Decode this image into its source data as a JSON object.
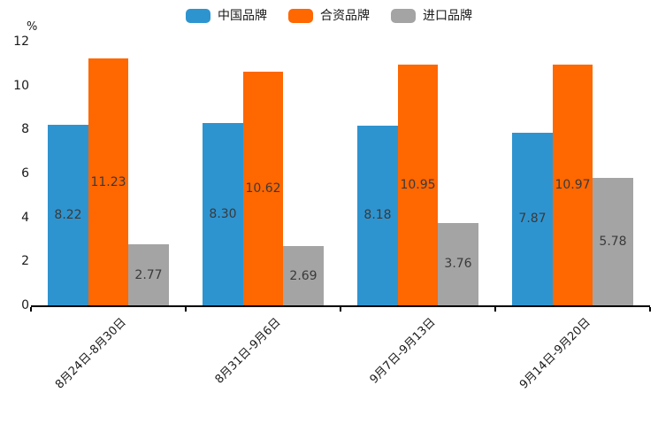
{
  "chart_data": {
    "type": "bar",
    "title": "",
    "unit_label": "%",
    "categories": [
      "8月24日-8月30日",
      "8月31日-9月6日",
      "9月7日-9月13日",
      "9月14日-9月20日"
    ],
    "series": [
      {
        "name": "中国品牌",
        "color": "#2E94D0",
        "values": [
          8.22,
          8.3,
          8.18,
          7.87
        ]
      },
      {
        "name": "合资品牌",
        "color": "#FF6700",
        "values": [
          11.23,
          10.62,
          10.95,
          10.97
        ]
      },
      {
        "name": "进口品牌",
        "color": "#A4A4A4",
        "values": [
          2.77,
          2.69,
          3.76,
          5.78
        ]
      }
    ],
    "ylim": [
      0,
      12
    ],
    "yticks": [
      0,
      2,
      4,
      6,
      8,
      10,
      12
    ],
    "legend_position": "top",
    "grid": false,
    "value_labels": "inside-center",
    "value_label_decimals": 2,
    "axis_color": "#000000",
    "value_label_color": "#3a3a3a"
  }
}
